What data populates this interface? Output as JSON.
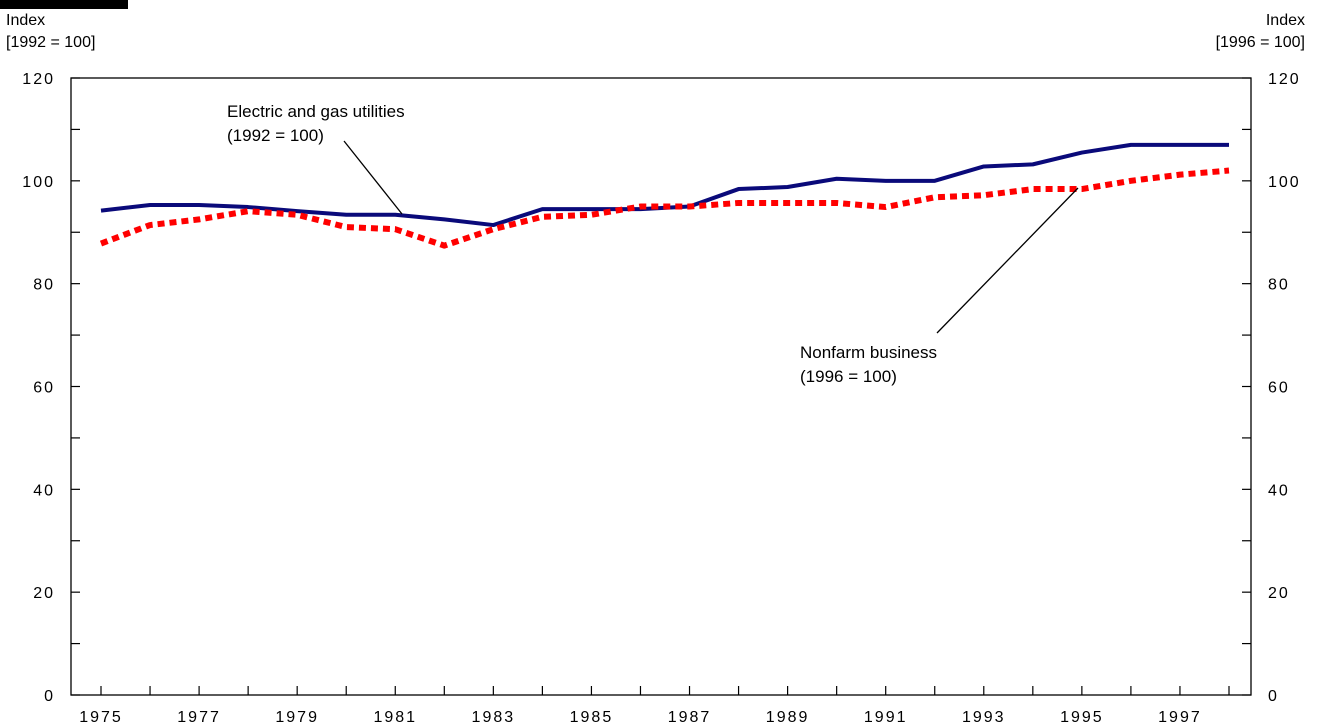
{
  "chart_data": {
    "type": "line",
    "left_axis_title": {
      "line1": "Index",
      "line2": "[1992 = 100]"
    },
    "right_axis_title": {
      "line1": "Index",
      "line2": "[1996 = 100]"
    },
    "x": [
      1975,
      1976,
      1977,
      1978,
      1979,
      1980,
      1981,
      1982,
      1983,
      1984,
      1985,
      1986,
      1987,
      1988,
      1989,
      1990,
      1991,
      1992,
      1993,
      1994,
      1995,
      1996,
      1997,
      1998
    ],
    "x_tick_labels": [
      "1975",
      "1977",
      "1979",
      "1981",
      "1983",
      "1985",
      "1987",
      "1989",
      "1991",
      "1993",
      "1995",
      "1997"
    ],
    "xlim": [
      1975,
      1998
    ],
    "ylim": [
      0,
      120
    ],
    "y_tick_labels": [
      "0",
      "20",
      "40",
      "60",
      "80",
      "100",
      "120"
    ],
    "series": [
      {
        "name": "Electric and gas utilities",
        "label_line1": "Electric and gas utilities",
        "label_line2": "(1992 = 100)",
        "axis": "left",
        "color": "#0a0a7a",
        "style": "solid",
        "values": [
          94.2,
          95.3,
          95.3,
          94.9,
          94.1,
          93.4,
          93.4,
          92.5,
          91.4,
          94.5,
          94.5,
          94.5,
          95.0,
          98.4,
          98.8,
          100.4,
          100.0,
          100.0,
          102.8,
          103.2,
          105.5,
          107.0,
          107.0,
          107.0
        ]
      },
      {
        "name": "Nonfarm business",
        "label_line1": "Nonfarm business",
        "label_line2": "(1996 = 100)",
        "axis": "right",
        "color": "#ff0000",
        "style": "dotted",
        "values": [
          87.8,
          91.4,
          92.5,
          94.1,
          93.4,
          91.0,
          90.6,
          87.4,
          90.6,
          93.0,
          93.4,
          95.0,
          95.0,
          95.7,
          95.7,
          95.7,
          94.9,
          96.8,
          97.2,
          98.4,
          98.4,
          100.0,
          101.2,
          102.0
        ]
      }
    ],
    "grid": false
  }
}
